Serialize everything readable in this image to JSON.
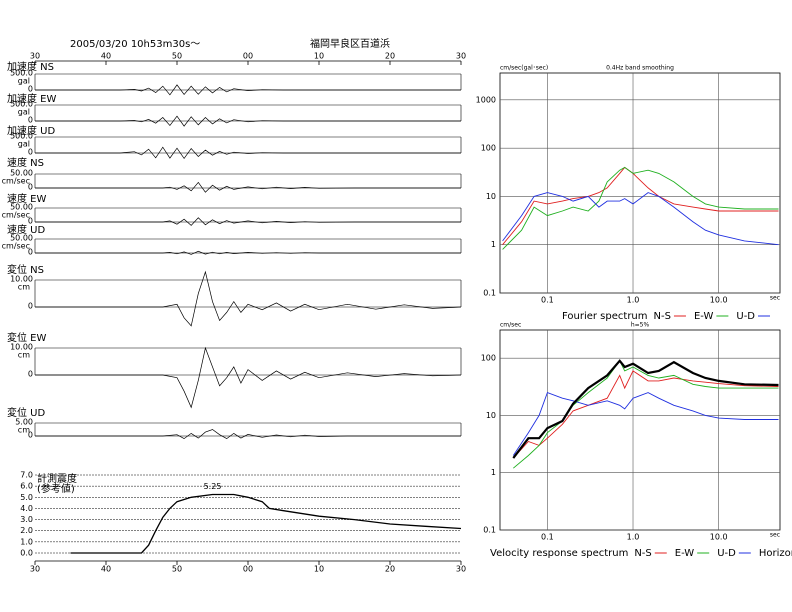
{
  "chart_data": [
    {
      "type": "seismogram",
      "date_label": "2005/03/20 10h53m30s～",
      "station": "福岡早良区百道浜",
      "xlim": [
        30,
        90
      ],
      "xticks": [
        30,
        40,
        50,
        {
          "value": 60,
          "label": "00"
        },
        {
          "value": 70,
          "label": "10"
        },
        {
          "value": 80,
          "label": "20"
        },
        {
          "value": 90,
          "label": "30"
        }
      ],
      "traces": [
        {
          "name": "加速度 NS",
          "unit": "gal",
          "ylim": [
            -500,
            500
          ],
          "yticks": [
            {
              "value": 500,
              "label": "500.0"
            },
            0
          ],
          "x": [
            30,
            42,
            44,
            45,
            46,
            47,
            48,
            49,
            50,
            51,
            52,
            53,
            54,
            55,
            56,
            57,
            58,
            60,
            62,
            65,
            90
          ],
          "values": [
            0,
            0,
            20,
            -30,
            60,
            -80,
            120,
            -150,
            160,
            -140,
            120,
            -130,
            100,
            -90,
            80,
            -60,
            40,
            -20,
            10,
            0,
            0
          ]
        },
        {
          "name": "加速度 EW",
          "unit": "gal",
          "ylim": [
            -500,
            500
          ],
          "yticks": [
            {
              "value": 500,
              "label": "500.0"
            },
            0
          ],
          "x": [
            30,
            42,
            44,
            45,
            46,
            47,
            48,
            49,
            50,
            51,
            52,
            53,
            54,
            55,
            56,
            57,
            58,
            60,
            62,
            65,
            90
          ],
          "values": [
            0,
            0,
            15,
            -25,
            50,
            -70,
            110,
            -140,
            150,
            -160,
            130,
            -120,
            110,
            -90,
            70,
            -60,
            40,
            -25,
            10,
            0,
            0
          ]
        },
        {
          "name": "加速度 UD",
          "unit": "gal",
          "ylim": [
            -500,
            500
          ],
          "yticks": [
            {
              "value": 500,
              "label": "500.0"
            },
            0
          ],
          "x": [
            30,
            42,
            44,
            45,
            46,
            47,
            48,
            49,
            50,
            51,
            52,
            53,
            54,
            55,
            56,
            57,
            58,
            60,
            62,
            65,
            90
          ],
          "values": [
            0,
            0,
            40,
            -60,
            120,
            -150,
            180,
            -160,
            150,
            -170,
            140,
            -110,
            90,
            -70,
            50,
            -40,
            25,
            -15,
            8,
            0,
            0
          ]
        },
        {
          "name": "速度 NS",
          "unit": "cm/sec",
          "ylim": [
            -50,
            50
          ],
          "yticks": [
            {
              "value": 50,
              "label": "50.00"
            },
            0
          ],
          "x": [
            30,
            48,
            49,
            50,
            51,
            52,
            53,
            54,
            55,
            56,
            57,
            58,
            60,
            62,
            64,
            66,
            68,
            70,
            75,
            90
          ],
          "values": [
            0,
            0,
            3,
            -5,
            8,
            -10,
            20,
            -15,
            10,
            -8,
            6,
            -5,
            4,
            -3,
            3,
            -2,
            2,
            -1,
            0,
            0
          ]
        },
        {
          "name": "速度 EW",
          "unit": "cm/sec",
          "ylim": [
            -50,
            50
          ],
          "yticks": [
            {
              "value": 50,
              "label": "50.00"
            },
            0
          ],
          "x": [
            30,
            48,
            49,
            50,
            51,
            52,
            53,
            54,
            55,
            56,
            57,
            58,
            60,
            62,
            64,
            66,
            68,
            70,
            75,
            90
          ],
          "values": [
            0,
            0,
            4,
            -8,
            10,
            -12,
            15,
            -10,
            8,
            -6,
            5,
            -4,
            4,
            -3,
            2,
            -2,
            1,
            -1,
            0,
            0
          ]
        },
        {
          "name": "速度 UD",
          "unit": "cm/sec",
          "ylim": [
            -50,
            50
          ],
          "yticks": [
            {
              "value": 50,
              "label": "50.00"
            },
            0
          ],
          "x": [
            30,
            48,
            49,
            50,
            51,
            52,
            53,
            54,
            55,
            56,
            57,
            58,
            60,
            62,
            64,
            66,
            68,
            70,
            75,
            90
          ],
          "values": [
            0,
            0,
            2,
            -3,
            4,
            -5,
            6,
            -4,
            3,
            -3,
            2,
            -2,
            2,
            -1,
            1,
            -1,
            1,
            0,
            0,
            0
          ]
        },
        {
          "name": "変位 NS",
          "unit": "cm",
          "ylim": [
            -10,
            10
          ],
          "yticks": [
            {
              "value": 10,
              "label": "10.00"
            },
            0
          ],
          "x": [
            30,
            48,
            50,
            51,
            52,
            53,
            54,
            55,
            56,
            57,
            58,
            59,
            60,
            62,
            64,
            66,
            68,
            70,
            74,
            78,
            82,
            86,
            90
          ],
          "values": [
            0,
            0,
            1,
            -4,
            -7,
            5,
            13,
            2,
            -5,
            -2,
            2,
            -2,
            1,
            -1,
            1.5,
            -1.5,
            1,
            -1,
            1,
            -0.8,
            0.8,
            -0.5,
            0
          ]
        },
        {
          "name": "変位 EW",
          "unit": "cm",
          "ylim": [
            -10,
            10
          ],
          "yticks": [
            {
              "value": 10,
              "label": "10.00"
            },
            0
          ],
          "x": [
            30,
            48,
            50,
            51,
            52,
            53,
            54,
            55,
            56,
            57,
            58,
            59,
            60,
            62,
            64,
            66,
            68,
            70,
            74,
            78,
            82,
            86,
            90
          ],
          "values": [
            0,
            0,
            -1,
            -6,
            -12,
            -2,
            10,
            3,
            -4,
            -1,
            3,
            -3,
            2,
            -2,
            1.5,
            -1.5,
            1,
            -1,
            0.8,
            -0.6,
            0.5,
            -0.3,
            0
          ]
        },
        {
          "name": "変位 UD",
          "unit": "cm",
          "ylim": [
            -5,
            5
          ],
          "yticks": [
            {
              "value": 5,
              "label": "5.00"
            },
            0
          ],
          "x": [
            30,
            48,
            50,
            51,
            52,
            53,
            54,
            55,
            56,
            57,
            58,
            59,
            60,
            62,
            64,
            66,
            68,
            70,
            74,
            78,
            82,
            86,
            90
          ],
          "values": [
            0,
            0,
            0.5,
            -1,
            1,
            -0.8,
            1.5,
            2.5,
            0.5,
            -1,
            1,
            -0.8,
            0.6,
            -0.5,
            0.4,
            -0.3,
            0.3,
            -0.2,
            0,
            0,
            0,
            0,
            0
          ]
        }
      ]
    },
    {
      "type": "line",
      "ylabel": [
        "計測震度",
        "(参考値)"
      ],
      "peak_label": "5.25",
      "xlim": [
        30,
        90
      ],
      "xticks": [
        30,
        40,
        50,
        {
          "value": 60,
          "label": "00"
        },
        {
          "value": 70,
          "label": "10"
        },
        {
          "value": 80,
          "label": "20"
        },
        {
          "value": 90,
          "label": "30"
        }
      ],
      "ylim": [
        0,
        7
      ],
      "yticks": [
        {
          "value": 0,
          "label": "0.0"
        },
        {
          "value": 1,
          "label": "1.0"
        },
        {
          "value": 2,
          "label": "2.0"
        },
        {
          "value": 3,
          "label": "3.0"
        },
        {
          "value": 4,
          "label": "4.0"
        },
        {
          "value": 5,
          "label": "5.0"
        },
        {
          "value": 6,
          "label": "6.0"
        },
        {
          "value": 7,
          "label": "7.0"
        }
      ],
      "x": [
        35,
        45,
        46,
        47,
        48,
        49,
        50,
        52,
        55,
        58,
        60,
        62,
        63,
        65,
        70,
        75,
        80,
        85,
        90
      ],
      "values": [
        0,
        0,
        0.7,
        2,
        3.2,
        4,
        4.6,
        5,
        5.25,
        5.25,
        5,
        4.6,
        4,
        3.8,
        3.3,
        3,
        2.6,
        2.4,
        2.2
      ],
      "color": "#000000"
    },
    {
      "type": "logline",
      "ylabel": "cm/sec(gal･sec)",
      "subtitle": "0.4Hz band smoothing",
      "xlabel": "sec",
      "legend_title": "Fourier spectrum",
      "log": true,
      "xlim": [
        0.028,
        52
      ],
      "ylim": [
        0.1,
        3600
      ],
      "xticks": [
        0.1,
        {
          "value": 1,
          "label": "1.0"
        },
        {
          "value": 10,
          "label": "10.0"
        }
      ],
      "yticks": [
        0.1,
        1,
        10,
        100,
        1000
      ],
      "x": [
        0.03,
        0.05,
        0.07,
        0.1,
        0.15,
        0.2,
        0.3,
        0.4,
        0.5,
        0.7,
        0.8,
        1,
        1.5,
        2,
        3,
        5,
        7,
        10,
        20,
        50
      ],
      "series": [
        {
          "name": "N-S",
          "color": "#e02020",
          "values": [
            1,
            3,
            8,
            7,
            8,
            9,
            10,
            12,
            15,
            30,
            40,
            30,
            15,
            10,
            7,
            6,
            5.5,
            5,
            5,
            5
          ]
        },
        {
          "name": "E-W",
          "color": "#20b020",
          "values": [
            0.8,
            2,
            6,
            4,
            5,
            6,
            5,
            8,
            20,
            35,
            40,
            30,
            35,
            30,
            20,
            10,
            7,
            6,
            5.5,
            5.5
          ]
        },
        {
          "name": "U-D",
          "color": "#2030e0",
          "values": [
            1.2,
            4,
            10,
            12,
            10,
            8,
            10,
            6,
            8,
            8,
            9,
            7,
            12,
            10,
            6,
            3,
            2,
            1.6,
            1.2,
            1
          ]
        }
      ]
    },
    {
      "type": "logline",
      "ylabel": "cm/sec",
      "subtitle": "h=5%",
      "xlabel": "sec",
      "legend_title": "Velocity response spectrum",
      "log": true,
      "xlim": [
        0.028,
        52
      ],
      "ylim": [
        0.1,
        310
      ],
      "xticks": [
        0.1,
        {
          "value": 1,
          "label": "1.0"
        },
        {
          "value": 10,
          "label": "10.0"
        }
      ],
      "yticks": [
        0.1,
        1,
        10,
        100
      ],
      "x": [
        0.04,
        0.06,
        0.08,
        0.1,
        0.15,
        0.2,
        0.3,
        0.5,
        0.7,
        0.8,
        1,
        1.5,
        2,
        3,
        5,
        7,
        10,
        20,
        50
      ],
      "series": [
        {
          "name": "N-S",
          "color": "#e02020",
          "values": [
            1.8,
            3.5,
            3,
            4,
            7,
            12,
            15,
            20,
            50,
            30,
            60,
            40,
            40,
            45,
            40,
            38,
            36,
            33,
            32
          ]
        },
        {
          "name": "E-W",
          "color": "#20b020",
          "values": [
            1.2,
            2,
            3,
            5,
            8,
            15,
            25,
            45,
            90,
            60,
            70,
            50,
            45,
            50,
            35,
            32,
            30,
            30,
            30
          ]
        },
        {
          "name": "U-D",
          "color": "#2030e0",
          "values": [
            2,
            5,
            10,
            25,
            20,
            18,
            15,
            18,
            15,
            13,
            20,
            25,
            20,
            15,
            12,
            10,
            9,
            8.5,
            8.5
          ]
        },
        {
          "name": "Horizon",
          "color": "#000000",
          "values": [
            1.8,
            4,
            4,
            6,
            8,
            16,
            30,
            50,
            90,
            70,
            80,
            55,
            60,
            85,
            55,
            45,
            40,
            35,
            34
          ]
        }
      ]
    }
  ]
}
